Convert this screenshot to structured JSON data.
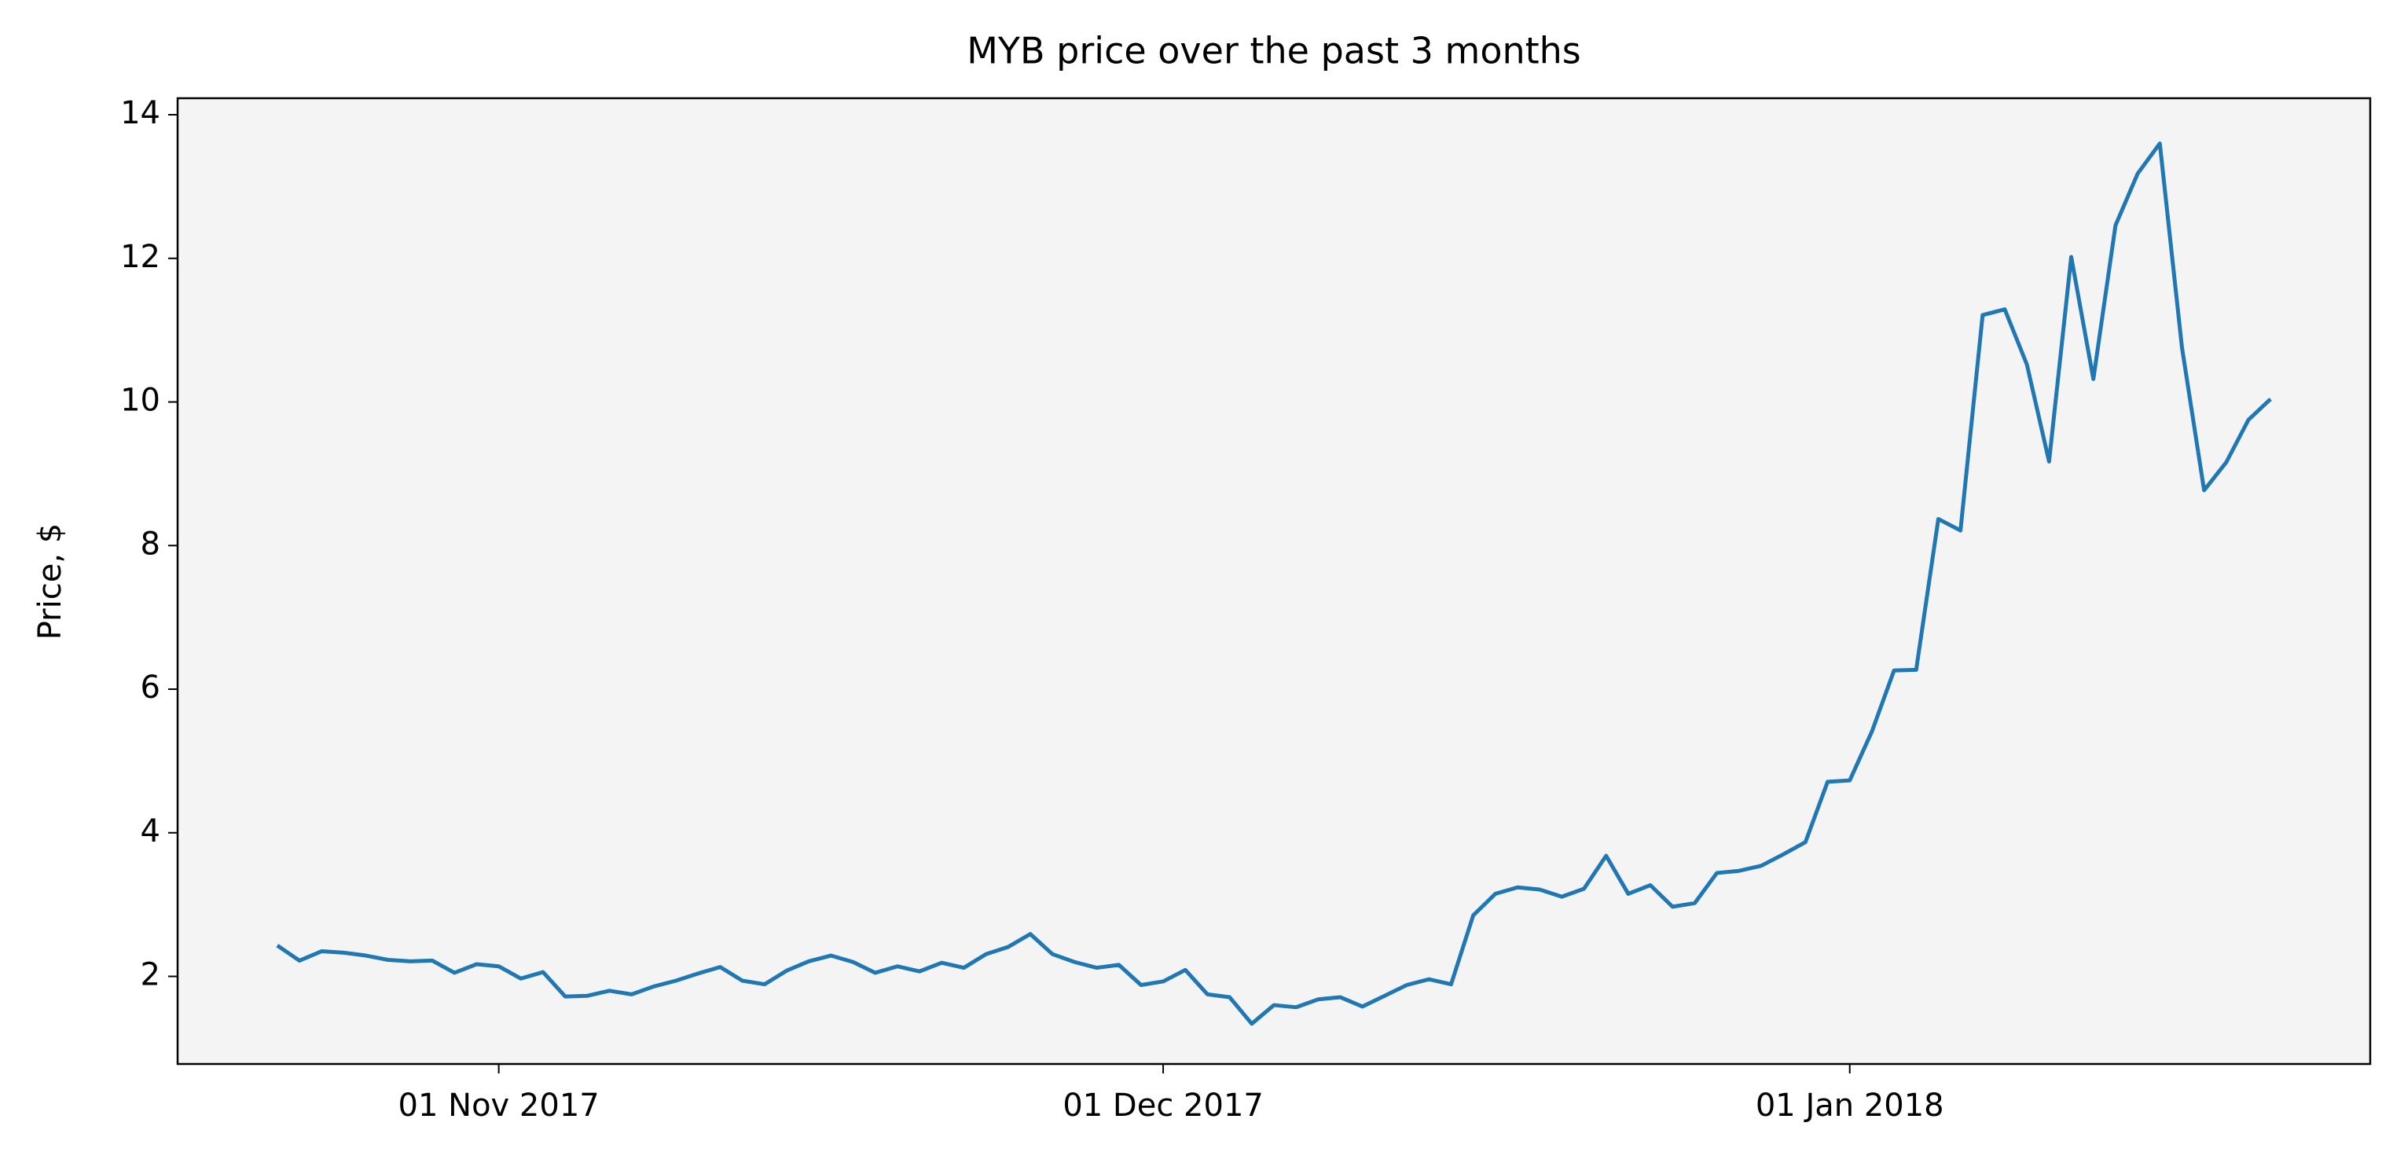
{
  "chart_data": {
    "type": "line",
    "title": "MYB price over the past 3 months",
    "y_label": "Price, $",
    "color": "#1f77b4",
    "background": "#f4f4f4",
    "x": [
      "2017-10-22",
      "2017-10-23",
      "2017-10-24",
      "2017-10-25",
      "2017-10-26",
      "2017-10-27",
      "2017-10-28",
      "2017-10-29",
      "2017-10-30",
      "2017-10-31",
      "2017-11-01",
      "2017-11-02",
      "2017-11-03",
      "2017-11-04",
      "2017-11-05",
      "2017-11-06",
      "2017-11-07",
      "2017-11-08",
      "2017-11-09",
      "2017-11-10",
      "2017-11-11",
      "2017-11-12",
      "2017-11-13",
      "2017-11-14",
      "2017-11-15",
      "2017-11-16",
      "2017-11-17",
      "2017-11-18",
      "2017-11-19",
      "2017-11-20",
      "2017-11-21",
      "2017-11-22",
      "2017-11-23",
      "2017-11-24",
      "2017-11-25",
      "2017-11-26",
      "2017-11-27",
      "2017-11-28",
      "2017-11-29",
      "2017-11-30",
      "2017-12-01",
      "2017-12-02",
      "2017-12-03",
      "2017-12-04",
      "2017-12-05",
      "2017-12-06",
      "2017-12-07",
      "2017-12-08",
      "2017-12-09",
      "2017-12-10",
      "2017-12-11",
      "2017-12-12",
      "2017-12-13",
      "2017-12-14",
      "2017-12-15",
      "2017-12-16",
      "2017-12-17",
      "2017-12-18",
      "2017-12-19",
      "2017-12-20",
      "2017-12-21",
      "2017-12-22",
      "2017-12-23",
      "2017-12-24",
      "2017-12-25",
      "2017-12-26",
      "2017-12-27",
      "2017-12-28",
      "2017-12-29",
      "2017-12-30",
      "2017-12-31",
      "2018-01-01",
      "2018-01-02",
      "2018-01-03",
      "2018-01-04",
      "2018-01-05",
      "2018-01-06",
      "2018-01-07",
      "2018-01-08",
      "2018-01-09",
      "2018-01-10",
      "2018-01-11",
      "2018-01-12",
      "2018-01-13",
      "2018-01-14",
      "2018-01-15",
      "2018-01-16",
      "2018-01-17",
      "2018-01-18",
      "2018-01-19",
      "2018-01-20"
    ],
    "values": [
      2.43,
      2.22,
      2.35,
      2.33,
      2.29,
      2.23,
      2.21,
      2.22,
      2.05,
      2.17,
      2.14,
      1.97,
      2.06,
      1.72,
      1.73,
      1.8,
      1.75,
      1.86,
      1.94,
      2.04,
      2.13,
      1.94,
      1.89,
      2.08,
      2.21,
      2.29,
      2.2,
      2.05,
      2.14,
      2.07,
      2.19,
      2.12,
      2.31,
      2.41,
      2.59,
      2.31,
      2.2,
      2.12,
      2.16,
      1.88,
      1.93,
      2.09,
      1.75,
      1.71,
      1.34,
      1.6,
      1.57,
      1.68,
      1.71,
      1.58,
      1.73,
      1.88,
      1.96,
      1.89,
      2.85,
      3.15,
      3.24,
      3.21,
      3.11,
      3.22,
      3.68,
      3.15,
      3.27,
      2.97,
      3.02,
      3.44,
      3.47,
      3.54,
      3.7,
      3.87,
      4.71,
      4.73,
      5.41,
      6.26,
      6.27,
      8.37,
      8.21,
      11.21,
      11.29,
      10.52,
      9.17,
      12.02,
      10.32,
      12.46,
      13.18,
      13.6,
      10.76,
      8.77,
      9.16,
      9.75,
      10.04
    ],
    "xlim": [
      "2017-10-17T12:00:00Z",
      "2018-01-24T12:00:00Z"
    ],
    "xticks": [
      {
        "value": "2017-11-01",
        "label": "01 Nov 2017"
      },
      {
        "value": "2017-12-01",
        "label": "01 Dec 2017"
      },
      {
        "value": "2018-01-01",
        "label": "01 Jan 2018"
      }
    ],
    "ylim": [
      0.78,
      14.23
    ],
    "yticks": [
      2,
      4,
      6,
      8,
      10,
      12,
      14
    ],
    "grid": false
  }
}
